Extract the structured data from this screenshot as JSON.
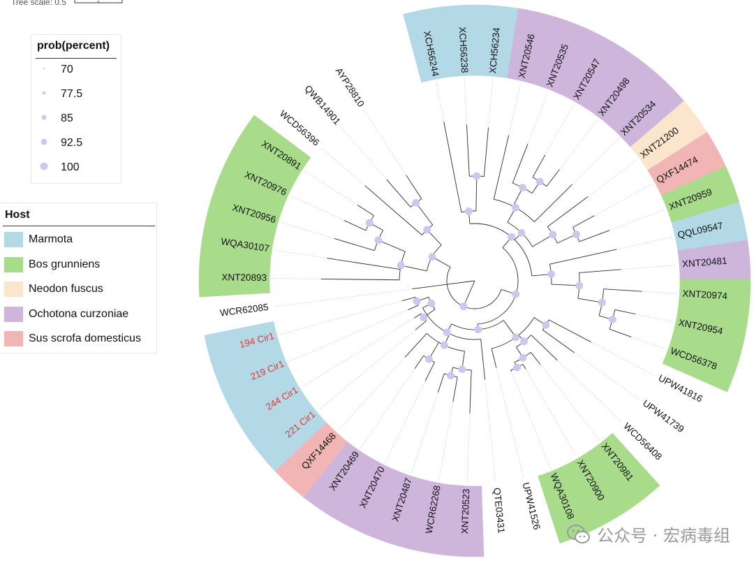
{
  "tree_scale": {
    "label": "Tree scale: 0.5"
  },
  "prob_legend": {
    "title": "prob(percent)",
    "items": [
      {
        "label": "70",
        "value": 70
      },
      {
        "label": "77.5",
        "value": 77.5
      },
      {
        "label": "85",
        "value": 85
      },
      {
        "label": "92.5",
        "value": 92.5
      },
      {
        "label": "100",
        "value": 100
      }
    ]
  },
  "host_legend": {
    "title": "Host",
    "items": [
      {
        "key": "marmota",
        "label": "Marmota",
        "color": "#b3d8e6"
      },
      {
        "key": "bos",
        "label": "Bos grunniens",
        "color": "#a8db8a"
      },
      {
        "key": "neodon",
        "label": "Neodon fuscus",
        "color": "#fce5cd"
      },
      {
        "key": "ochotona",
        "label": "Ochotona curzoniae",
        "color": "#cdb5dc"
      },
      {
        "key": "sus",
        "label": "Sus scrofa domesticus",
        "color": "#f2b5b5"
      }
    ]
  },
  "colors": {
    "node": "#c9c8ef",
    "branch": "#2b2b2b",
    "guide": "#cccccc",
    "red_label": "#e8352e"
  },
  "tree": {
    "tips": [
      {
        "label": "XCH56244",
        "host": "marmota"
      },
      {
        "label": "XCH56238",
        "host": "marmota"
      },
      {
        "label": "XCH56234",
        "host": "marmota"
      },
      {
        "label": "XNT20546",
        "host": "ochotona"
      },
      {
        "label": "XNT20535",
        "host": "ochotona"
      },
      {
        "label": "XNT20547",
        "host": "ochotona"
      },
      {
        "label": "XNT20498",
        "host": "ochotona"
      },
      {
        "label": "XNT20534",
        "host": "ochotona"
      },
      {
        "label": "XNT21200",
        "host": "neodon"
      },
      {
        "label": "QXF14474",
        "host": "sus"
      },
      {
        "label": "XNT20959",
        "host": "bos"
      },
      {
        "label": "QQL09547",
        "host": "marmota"
      },
      {
        "label": "XNT20481",
        "host": "ochotona"
      },
      {
        "label": "XNT20974",
        "host": "bos"
      },
      {
        "label": "XNT20954",
        "host": "bos"
      },
      {
        "label": "WCD56378",
        "host": "bos"
      },
      {
        "label": "UPW41816",
        "host": ""
      },
      {
        "label": "UPW41739",
        "host": ""
      },
      {
        "label": "WCD56408",
        "host": ""
      },
      {
        "label": "XNT20981",
        "host": "bos"
      },
      {
        "label": "XNT20900",
        "host": "bos"
      },
      {
        "label": "WQA30108",
        "host": "bos"
      },
      {
        "label": "UPW41526",
        "host": ""
      },
      {
        "label": "QTE03431",
        "host": ""
      },
      {
        "label": "XNT20523",
        "host": "ochotona"
      },
      {
        "label": "WCR62268",
        "host": "ochotona"
      },
      {
        "label": "XNT20487",
        "host": "ochotona"
      },
      {
        "label": "XNT20470",
        "host": "ochotona"
      },
      {
        "label": "XNT20469",
        "host": "ochotona"
      },
      {
        "label": "QXF14468",
        "host": "sus"
      },
      {
        "label": "221 Cir1",
        "host": "marmota",
        "highlight": true
      },
      {
        "label": "244 Cir1",
        "host": "marmota",
        "highlight": true
      },
      {
        "label": "219 Cir1",
        "host": "marmota",
        "highlight": true
      },
      {
        "label": "194 Cir1",
        "host": "marmota",
        "highlight": true
      },
      {
        "label": "WCR62085",
        "host": ""
      },
      {
        "label": "XNT20893",
        "host": "bos"
      },
      {
        "label": "WQA30107",
        "host": "bos"
      },
      {
        "label": "XNT20956",
        "host": "bos"
      },
      {
        "label": "XNT20976",
        "host": "bos"
      },
      {
        "label": "XNT20891",
        "host": "bos"
      },
      {
        "label": "WCD56396",
        "host": ""
      },
      {
        "label": "QWB14901",
        "host": ""
      },
      {
        "label": "AYP28810",
        "host": ""
      }
    ]
  },
  "watermark": {
    "text": "公众号 · 宏病毒组"
  }
}
